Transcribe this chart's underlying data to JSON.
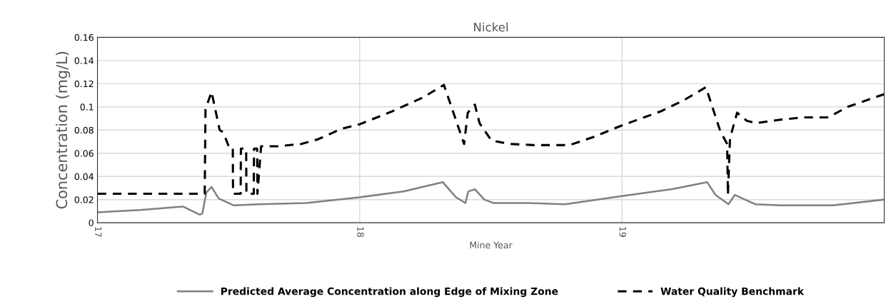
{
  "chart_data": {
    "type": "line",
    "title": "Nickel",
    "xlabel": "Mine Year",
    "ylabel": "Concentration (mg/L)",
    "xlim": [
      17,
      20
    ],
    "xticks": [
      17,
      18,
      19
    ],
    "ylim": [
      0,
      0.16
    ],
    "yticks": [
      0,
      0.02,
      0.04,
      0.06,
      0.08,
      0.1,
      0.12,
      0.14,
      0.16
    ],
    "grid": true,
    "legend": "bottom",
    "marker": "none",
    "series": [
      {
        "name": "Predicted Average Concentration along Edge of Mixing Zone",
        "color": "#808080",
        "line_style": "solid",
        "x": [
          17.0,
          17.164,
          17.326,
          17.39,
          17.4,
          17.415,
          17.435,
          17.462,
          17.52,
          17.615,
          17.795,
          18.0,
          18.167,
          18.317,
          18.367,
          18.403,
          18.414,
          18.439,
          18.475,
          18.511,
          18.638,
          18.783,
          19.0,
          19.127,
          19.192,
          19.325,
          19.357,
          19.406,
          19.43,
          19.508,
          19.604,
          19.805,
          20.0
        ],
        "values": [
          0.009,
          0.011,
          0.014,
          0.007,
          0.008,
          0.026,
          0.031,
          0.021,
          0.015,
          0.016,
          0.017,
          0.022,
          0.027,
          0.035,
          0.022,
          0.017,
          0.027,
          0.029,
          0.02,
          0.017,
          0.017,
          0.016,
          0.023,
          0.027,
          0.029,
          0.035,
          0.024,
          0.016,
          0.024,
          0.016,
          0.015,
          0.015,
          0.02
        ]
      },
      {
        "name": "Water Quality Benchmark",
        "color": "#000000",
        "line_style": "dashed",
        "x": [
          17.0,
          17.409,
          17.412,
          17.435,
          17.466,
          17.48,
          17.502,
          17.516,
          17.517,
          17.546,
          17.547,
          17.567,
          17.568,
          17.596,
          17.597,
          17.609,
          17.61,
          17.624,
          17.687,
          17.777,
          17.84,
          17.93,
          18.0,
          18.122,
          18.24,
          18.321,
          18.398,
          18.412,
          18.439,
          18.457,
          18.502,
          18.575,
          18.665,
          18.8,
          18.891,
          19.0,
          19.146,
          19.238,
          19.32,
          19.375,
          19.401,
          19.404,
          19.412,
          19.439,
          19.476,
          19.512,
          19.604,
          19.695,
          19.787,
          19.86,
          20.0
        ],
        "values": [
          0.025,
          0.025,
          0.098,
          0.113,
          0.08,
          0.078,
          0.065,
          0.065,
          0.025,
          0.025,
          0.064,
          0.064,
          0.025,
          0.025,
          0.064,
          0.064,
          0.025,
          0.066,
          0.066,
          0.068,
          0.072,
          0.081,
          0.085,
          0.096,
          0.108,
          0.119,
          0.068,
          0.095,
          0.102,
          0.086,
          0.071,
          0.068,
          0.067,
          0.067,
          0.074,
          0.084,
          0.096,
          0.106,
          0.117,
          0.079,
          0.068,
          0.024,
          0.073,
          0.095,
          0.088,
          0.086,
          0.089,
          0.091,
          0.091,
          0.1,
          0.111
        ]
      }
    ]
  }
}
